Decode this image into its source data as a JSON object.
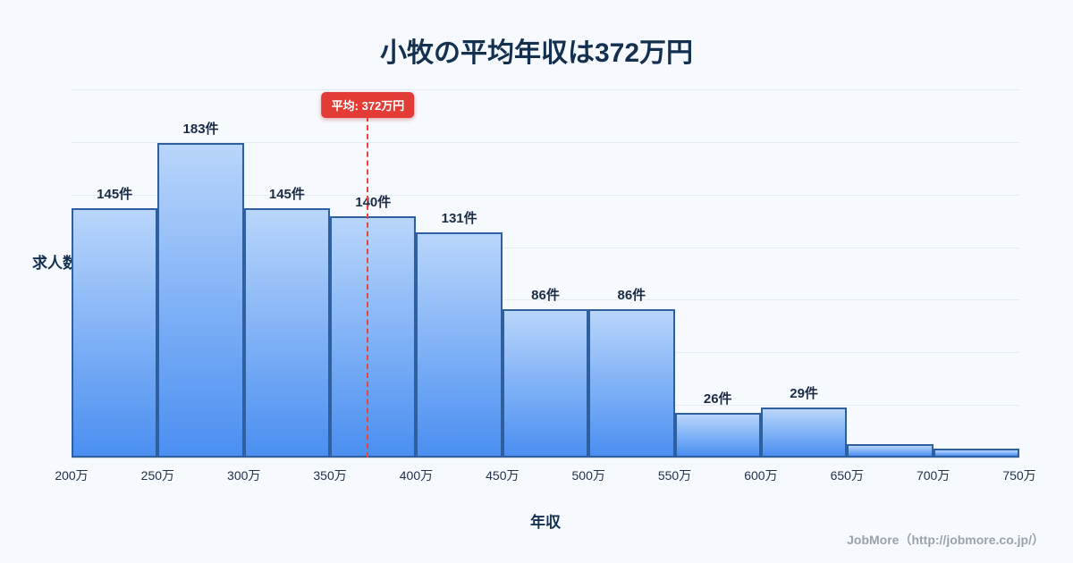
{
  "header": {
    "title": "小牧の平均年収は372万円"
  },
  "chart_data": {
    "type": "bar",
    "subtype": "histogram",
    "title": "小牧の平均年収は372万円",
    "xlabel": "年収",
    "ylabel": "求人数",
    "x_min": 200,
    "x_max": 750,
    "x_tick_unit": "万",
    "x_ticks": [
      "200万",
      "250万",
      "300万",
      "350万",
      "400万",
      "450万",
      "500万",
      "550万",
      "600万",
      "650万",
      "700万",
      "750万"
    ],
    "ymax": 214,
    "gridlines": 8,
    "legend": "none",
    "bins": [
      {
        "range": "200万-250万",
        "count": 145,
        "label": "145件"
      },
      {
        "range": "250万-300万",
        "count": 183,
        "label": "183件"
      },
      {
        "range": "300万-350万",
        "count": 145,
        "label": "145件"
      },
      {
        "range": "350万-400万",
        "count": 140,
        "label": "140件"
      },
      {
        "range": "400万-450万",
        "count": 131,
        "label": "131件"
      },
      {
        "range": "450万-500万",
        "count": 86,
        "label": "86件"
      },
      {
        "range": "500万-550万",
        "count": 86,
        "label": "86件"
      },
      {
        "range": "550万-600万",
        "count": 26,
        "label": "26件"
      },
      {
        "range": "600万-650万",
        "count": 29,
        "label": "29件"
      },
      {
        "range": "650万-700万",
        "count": 8,
        "label": ""
      },
      {
        "range": "700万-750万",
        "count": 5,
        "label": ""
      }
    ],
    "average": {
      "value": 372,
      "label": "平均: 372万円",
      "line_color": "#e8453c",
      "badge_color": "#e33b36"
    },
    "bar_style": {
      "gradient_top": "#b9d6fb",
      "gradient_bottom": "#4a8ff1",
      "border": "#2e5f9f"
    }
  },
  "footer": {
    "credit": "JobMore（http://jobmore.co.jp/）"
  }
}
